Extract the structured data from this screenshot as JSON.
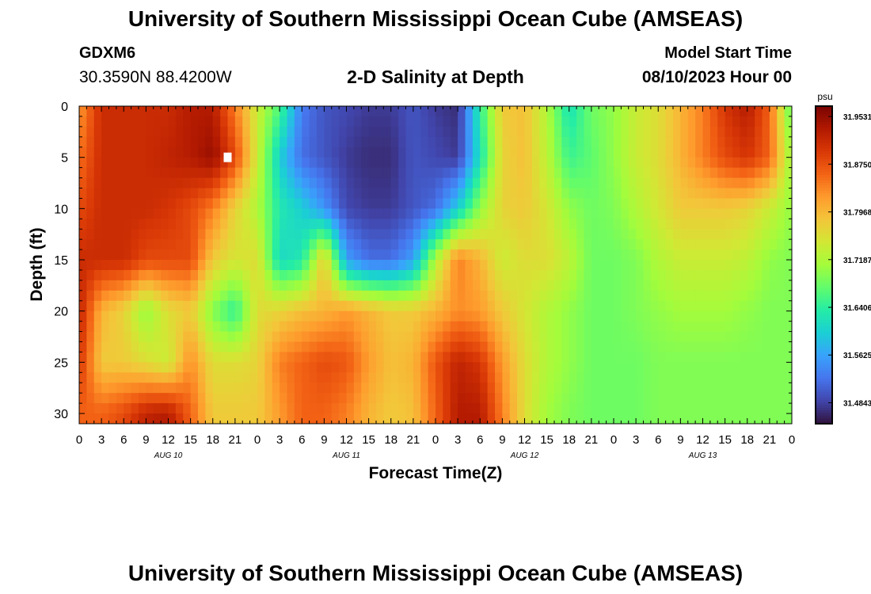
{
  "header": {
    "title": "University of Southern Mississippi Ocean Cube (AMSEAS)",
    "station_id": "GDXM6",
    "coordinates": "30.3590N  88.4200W",
    "plot_title": "2-D Salinity at Depth",
    "model_start_label": "Model Start Time",
    "model_start_value": "08/10/2023 Hour 00"
  },
  "footer": {
    "title": "University of Southern Mississippi Ocean Cube (AMSEAS)"
  },
  "chart_data": {
    "type": "heatmap",
    "title": "2-D Salinity at Depth",
    "xlabel": "Forecast Time(Z)",
    "ylabel": "Depth (ft)",
    "x_range_hours": [
      0,
      96
    ],
    "y_range_ft": [
      0,
      31
    ],
    "y_inverted": true,
    "x_tick_labels": [
      "0",
      "3",
      "6",
      "9",
      "12",
      "15",
      "18",
      "21",
      "0",
      "3",
      "6",
      "9",
      "12",
      "15",
      "18",
      "21",
      "0",
      "3",
      "6",
      "9",
      "12",
      "15",
      "18",
      "21",
      "0",
      "3",
      "6",
      "9",
      "12",
      "15",
      "18",
      "21",
      "0"
    ],
    "day_labels": [
      "AUG 10",
      "AUG 11",
      "AUG 12",
      "AUG 13"
    ],
    "y_tick_labels": [
      "0",
      "5",
      "10",
      "15",
      "20",
      "25",
      "30"
    ],
    "colorbar": {
      "unit": "psu",
      "tick_labels": [
        "31.9531",
        "31.8750",
        "31.7968",
        "31.7187",
        "31.6406",
        "31.5625",
        "31.4843"
      ],
      "min": 31.45,
      "max": 31.97,
      "colors": [
        "#30123b",
        "#4145ab",
        "#4675ed",
        "#39a2fc",
        "#1bcfd4",
        "#24eca6",
        "#61fc6c",
        "#a4fc3b",
        "#d1e834",
        "#f3c63a",
        "#fe9b2d",
        "#f36315",
        "#d93806",
        "#b11901",
        "#7a0402"
      ]
    },
    "salinity_psu": {
      "x_hours": [
        0,
        3,
        6,
        9,
        12,
        15,
        18,
        21,
        24,
        27,
        30,
        33,
        36,
        39,
        42,
        45,
        48,
        51,
        54,
        57,
        60,
        63,
        66,
        69,
        72,
        75,
        78,
        81,
        84,
        87,
        90,
        93,
        96
      ],
      "depth_ft": [
        0,
        5,
        10,
        15,
        20,
        25,
        30
      ],
      "values": [
        [
          31.82,
          31.91,
          31.91,
          31.91,
          31.91,
          31.93,
          31.93,
          31.84,
          31.74,
          31.66,
          31.53,
          31.5,
          31.49,
          31.48,
          31.48,
          31.5,
          31.48,
          31.47,
          31.64,
          31.78,
          31.79,
          31.72,
          31.62,
          31.68,
          31.7,
          31.74,
          31.76,
          31.8,
          31.84,
          31.9,
          31.93,
          31.86,
          31.66
        ],
        [
          31.85,
          31.91,
          31.91,
          31.91,
          31.92,
          31.93,
          31.95,
          31.88,
          31.74,
          31.6,
          31.52,
          31.5,
          31.48,
          31.47,
          31.47,
          31.5,
          31.49,
          31.48,
          31.62,
          31.77,
          31.79,
          31.73,
          31.65,
          31.67,
          31.7,
          31.74,
          31.76,
          31.8,
          31.84,
          31.88,
          31.9,
          31.86,
          31.7
        ],
        [
          31.88,
          31.91,
          31.91,
          31.91,
          31.9,
          31.88,
          31.84,
          31.77,
          31.72,
          31.63,
          31.6,
          31.55,
          31.49,
          31.48,
          31.48,
          31.5,
          31.52,
          31.6,
          31.7,
          31.77,
          31.78,
          31.75,
          31.7,
          31.68,
          31.69,
          31.72,
          31.75,
          31.78,
          31.78,
          31.78,
          31.77,
          31.74,
          31.7
        ],
        [
          31.91,
          31.91,
          31.91,
          31.88,
          31.88,
          31.88,
          31.78,
          31.75,
          31.76,
          31.61,
          31.63,
          31.78,
          31.56,
          31.52,
          31.52,
          31.56,
          31.72,
          31.84,
          31.8,
          31.74,
          31.76,
          31.76,
          31.73,
          31.68,
          31.68,
          31.69,
          31.72,
          31.74,
          31.74,
          31.74,
          31.73,
          31.7,
          31.69
        ],
        [
          31.92,
          31.8,
          31.77,
          31.7,
          31.76,
          31.78,
          31.69,
          31.64,
          31.76,
          31.77,
          31.79,
          31.8,
          31.82,
          31.8,
          31.78,
          31.78,
          31.8,
          31.83,
          31.82,
          31.78,
          31.75,
          31.72,
          31.7,
          31.68,
          31.68,
          31.69,
          31.7,
          31.71,
          31.71,
          31.71,
          31.7,
          31.69,
          31.69
        ],
        [
          31.9,
          31.78,
          31.78,
          31.76,
          31.74,
          31.83,
          31.76,
          31.76,
          31.77,
          31.84,
          31.86,
          31.88,
          31.87,
          31.82,
          31.79,
          31.8,
          31.87,
          31.92,
          31.9,
          31.82,
          31.76,
          31.72,
          31.7,
          31.68,
          31.68,
          31.68,
          31.69,
          31.69,
          31.69,
          31.69,
          31.69,
          31.69,
          31.69
        ],
        [
          31.86,
          31.86,
          31.88,
          31.92,
          31.93,
          31.86,
          31.78,
          31.78,
          31.78,
          31.82,
          31.86,
          31.86,
          31.84,
          31.8,
          31.78,
          31.79,
          31.86,
          31.93,
          31.93,
          31.84,
          31.76,
          31.71,
          31.69,
          31.68,
          31.68,
          31.68,
          31.69,
          31.69,
          31.69,
          31.69,
          31.69,
          31.69,
          31.69
        ]
      ]
    },
    "marker": {
      "x_hours": 20,
      "depth_ft": 5
    }
  }
}
